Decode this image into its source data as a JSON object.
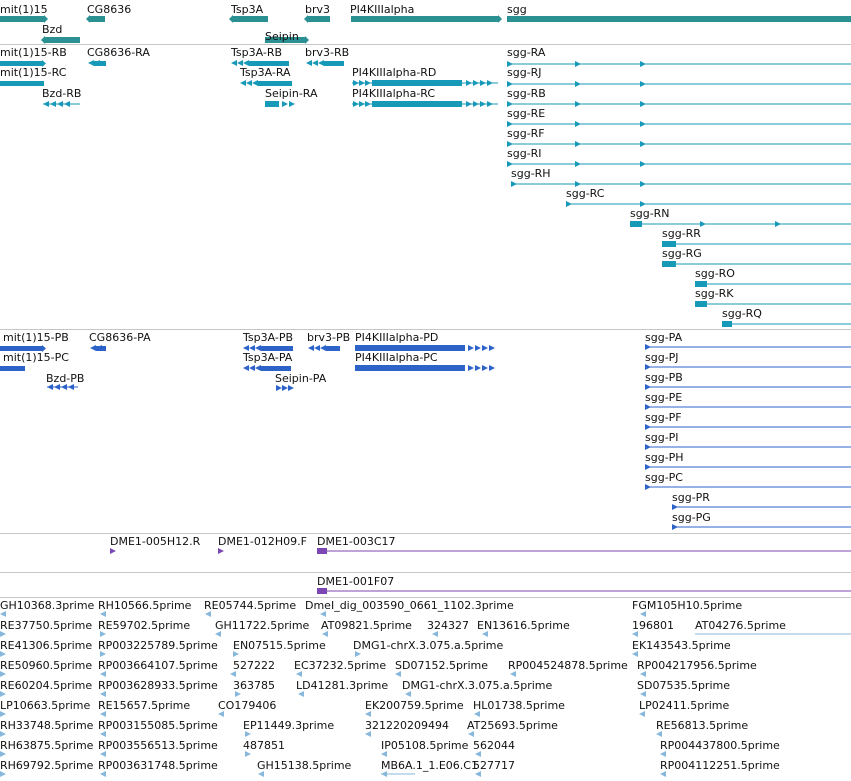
{
  "colors": {
    "gene": "#2b9092",
    "mrna": "#1799b8",
    "protein": "#2d63c9",
    "clone": "#7b47b2",
    "est": "#86b8dc",
    "separator": "#c6c6c6"
  },
  "genes": [
    {
      "label": "mit(1)15",
      "glyph": "chevron-right-arrow-icon"
    },
    {
      "label": "Bzd",
      "glyph": "chevron-left-arrow-icon"
    },
    {
      "label": "CG8636",
      "glyph": "chevron-left-arrow-icon"
    },
    {
      "label": "Tsp3A",
      "glyph": "chevron-left-arrow-icon"
    },
    {
      "label": "Seipin",
      "glyph": "chevron-right-arrow-icon"
    },
    {
      "label": "brv3",
      "glyph": "chevron-left-arrow-icon"
    },
    {
      "label": "PI4KIIIalpha",
      "glyph": "chevron-right-arrow-icon"
    },
    {
      "label": "sgg",
      "glyph": "chevron-right-arrow-icon"
    }
  ],
  "transcripts": [
    {
      "label": "mit(1)15-RB"
    },
    {
      "label": "mit(1)15-RC"
    },
    {
      "label": "CG8636-RA"
    },
    {
      "label": "Bzd-RB"
    },
    {
      "label": "Tsp3A-RB"
    },
    {
      "label": "Tsp3A-RA"
    },
    {
      "label": "Seipin-RA"
    },
    {
      "label": "brv3-RB"
    },
    {
      "label": "PI4KIIIalpha-RD"
    },
    {
      "label": "PI4KIIIalpha-RC"
    },
    {
      "label": "sgg-RA"
    },
    {
      "label": "sgg-RJ"
    },
    {
      "label": "sgg-RB"
    },
    {
      "label": "sgg-RE"
    },
    {
      "label": "sgg-RF"
    },
    {
      "label": "sgg-RI"
    },
    {
      "label": "sgg-RH"
    },
    {
      "label": "sgg-RC"
    },
    {
      "label": "sgg-RN"
    },
    {
      "label": "sgg-RR"
    },
    {
      "label": "sgg-RG"
    },
    {
      "label": "sgg-RO"
    },
    {
      "label": "sgg-RK"
    },
    {
      "label": "sgg-RQ"
    }
  ],
  "proteins": [
    {
      "label": "mit(1)15-PB"
    },
    {
      "label": "mit(1)15-PC"
    },
    {
      "label": "CG8636-PA"
    },
    {
      "label": "Bzd-PB"
    },
    {
      "label": "Tsp3A-PB"
    },
    {
      "label": "Tsp3A-PA"
    },
    {
      "label": "brv3-PB"
    },
    {
      "label": "Seipin-PA"
    },
    {
      "label": "PI4KIIIalpha-PD"
    },
    {
      "label": "PI4KIIIalpha-PC"
    },
    {
      "label": "sgg-PA"
    },
    {
      "label": "sgg-PJ"
    },
    {
      "label": "sgg-PB"
    },
    {
      "label": "sgg-PE"
    },
    {
      "label": "sgg-PF"
    },
    {
      "label": "sgg-PI"
    },
    {
      "label": "sgg-PH"
    },
    {
      "label": "sgg-PC"
    },
    {
      "label": "sgg-PR"
    },
    {
      "label": "sgg-PG"
    }
  ],
  "clones": [
    {
      "label": "DME1-005H12.R"
    },
    {
      "label": "DME1-012H09.F"
    },
    {
      "label": "DME1-003C17"
    },
    {
      "label": "DME1-001F07"
    }
  ],
  "ests": [
    "GH10368.3prime",
    "RH10566.5prime",
    "RE05744.5prime",
    "DmeI_dig_003590_0661_1102.3prime",
    "FGM105H10.5prime",
    "RE37750.5prime",
    "RE59702.5prime",
    "GH11722.5prime",
    "AT09821.5prime",
    "324327",
    "EN13616.5prime",
    "196801",
    "AT04276.5prime",
    "RE41306.5prime",
    "RP003225789.5prime",
    "EN07515.5prime",
    "DMG1-chrX.3.075.a.5prime",
    "EK143543.5prime",
    "RE50960.5prime",
    "RP003664107.5prime",
    "527222",
    "EC37232.5prime",
    "SD07152.5prime",
    "RP004524878.5prime",
    "RP004217956.5prime",
    "RE60204.5prime",
    "RP003628933.5prime",
    "363785",
    "LD41281.3prime",
    "DMG1-chrX.3.075.a.5prime",
    "SD07535.5prime",
    "LP10663.5prime",
    "RE15657.5prime",
    "CO179406",
    "EK200759.5prime",
    "HL01738.5prime",
    "LP02411.5prime",
    "RH33748.5prime",
    "RP003155085.5prime",
    "EP11449.3prime",
    "321220209494",
    "AT25693.5prime",
    "RE56813.5prime",
    "RH63875.5prime",
    "RP003556513.5prime",
    "487851",
    "IP05108.5prime",
    "562044",
    "RP004437800.5prime",
    "RH69792.5prime",
    "RP003631748.5prime",
    "GH15138.5prime",
    "MB6A.1_1.E06.C1",
    "527717",
    "RP004112251.5prime"
  ]
}
